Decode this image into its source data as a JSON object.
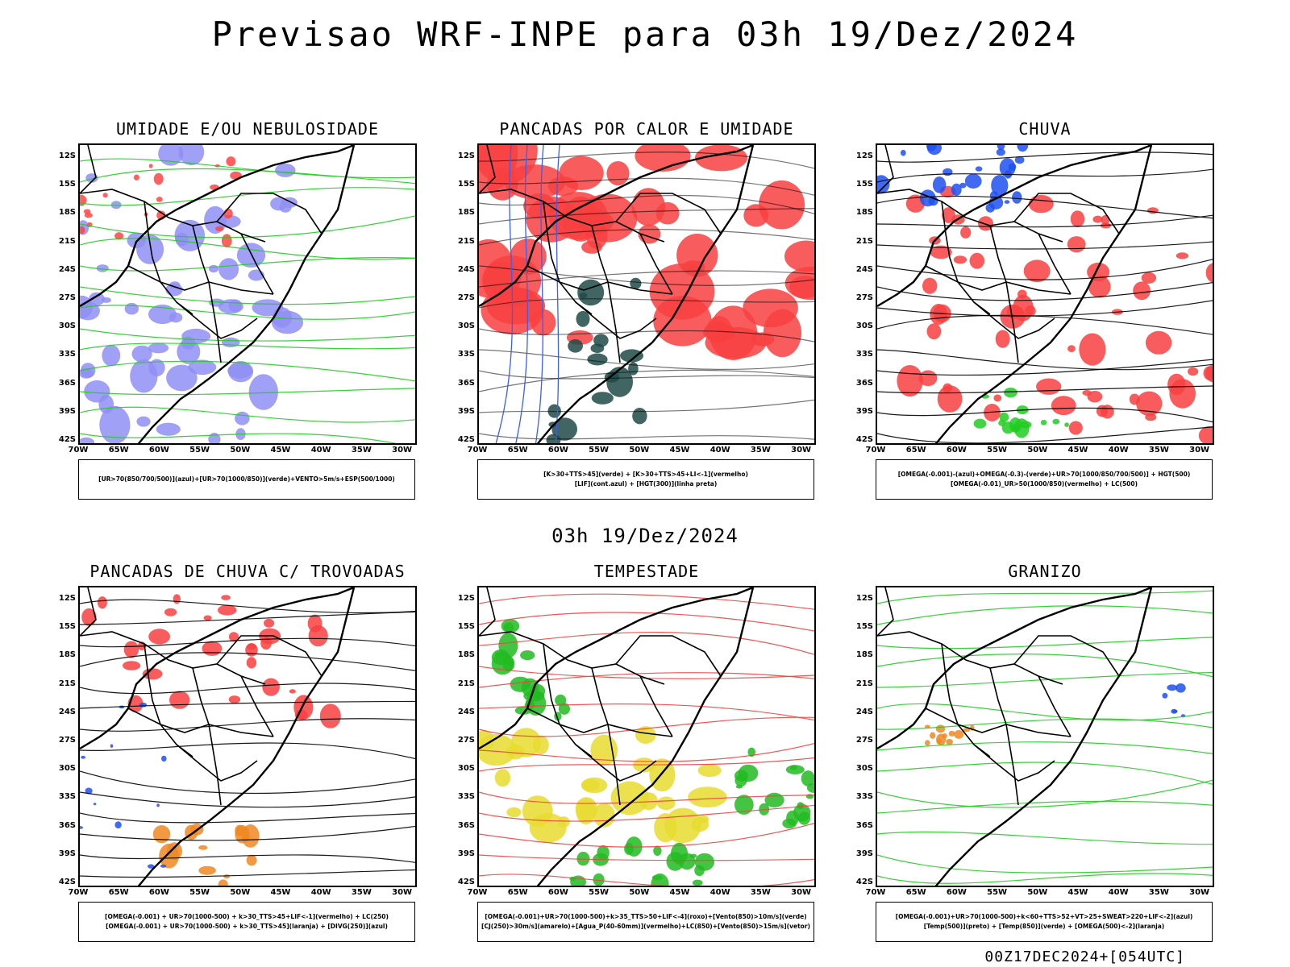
{
  "header": {
    "title": "Previsao WRF-INPE  para 03h 19/Dez/2024",
    "mid_time": "03h 19/Dez/2024",
    "footer_code": "00Z17DEC2024+[054UTC]"
  },
  "axes": {
    "lat_labels": [
      "12S",
      "15S",
      "18S",
      "21S",
      "24S",
      "27S",
      "30S",
      "33S",
      "36S",
      "39S",
      "42S"
    ],
    "lon_labels": [
      "70W",
      "65W",
      "60W",
      "55W",
      "50W",
      "45W",
      "40W",
      "35W",
      "30W"
    ]
  },
  "panels": [
    {
      "title": "UMIDADE E/OU NEBULOSIDADE",
      "legend": [
        "[UR>70(850/700/500)](azul)+[UR>70(1000/850)](verde)+VENTO>5m/s+ESP(500/1000)"
      ],
      "colors": {
        "a": "#8f8ff5",
        "b": "#22cc22",
        "c": "#ff4444"
      }
    },
    {
      "title": "PANCADAS POR CALOR E UMIDADE",
      "legend": [
        "[K>30+TTS>45](verde) + [K>30+TTS>45+LI<-1](vermelho)",
        "[LIF](cont.azul) + [HGT(300)](linha preta)"
      ],
      "colors": {
        "a": "#f84040",
        "b": "#1f4a48",
        "c": "#3a5ef0"
      }
    },
    {
      "title": "CHUVA",
      "legend": [
        "[OMEGA(-0.001)-(azul)+OMEGA(-0.3)-(verde)+UR>70(1000/850/700/500)] + HGT(500)",
        "[OMEGA(-0.01)_UR>50(1000/850)(vermelho) + LC(500)"
      ],
      "colors": {
        "a": "#f84040",
        "b": "#2050f0",
        "c": "#22cc22"
      }
    },
    {
      "title": "PANCADAS DE CHUVA C/ TROVOADAS",
      "legend": [
        "[OMEGA(-0.001) + UR>70(1000-500) + k>30_TTS>45+LIF<-1](vermelho) + LC(250)",
        "[OMEGA(-0.001) + UR>70(1000-500) + k>30_TTS>45](laranja) + [DIVG(250)](azul)"
      ],
      "colors": {
        "a": "#f84040",
        "b": "#ee8822",
        "c": "#2050f0"
      }
    },
    {
      "title": "TEMPESTADE",
      "legend": [
        "[OMEGA(-0.001)+UR>70(1000-500)+k>35_TTS>50+LIF<-4](roxo)+[Vento(850)>10m/s](verde)",
        "[CJ(250)>30m/s](amarelo)+[Agua_P(40-60mm)](vermelho)+LC(850)+[Vento(850)>15m/s](vetor)"
      ],
      "colors": {
        "a": "#e8dc30",
        "b": "#22bb22",
        "c": "#ee4444"
      }
    },
    {
      "title": "GRANIZO",
      "legend": [
        "[OMEGA(-0.001)+UR>70(1000-500)+k<60+TTS>52+VT>25+SWEAT>220+LIF<-2](azul)",
        "[Temp(500)](preto) + [Temp(850)](verde) + [OMEGA(500)<-2](laranja)"
      ],
      "colors": {
        "a": "#ee8822",
        "b": "#22cc22",
        "c": "#2050f0"
      }
    }
  ]
}
